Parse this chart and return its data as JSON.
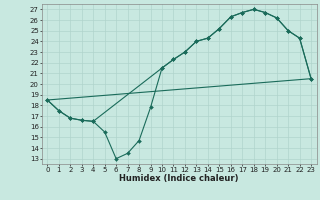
{
  "title": "",
  "xlabel": "Humidex (Indice chaleur)",
  "bg_color": "#c8e8e0",
  "grid_color": "#b0d4cc",
  "line_color": "#1a6b5a",
  "xlim": [
    -0.5,
    23.5
  ],
  "ylim": [
    12.5,
    27.5
  ],
  "yticks": [
    13,
    14,
    15,
    16,
    17,
    18,
    19,
    20,
    21,
    22,
    23,
    24,
    25,
    26,
    27
  ],
  "xticks": [
    0,
    1,
    2,
    3,
    4,
    5,
    6,
    7,
    8,
    9,
    10,
    11,
    12,
    13,
    14,
    15,
    16,
    17,
    18,
    19,
    20,
    21,
    22,
    23
  ],
  "line1_x": [
    0,
    1,
    2,
    3,
    4,
    10,
    11,
    12,
    13,
    14,
    15,
    16,
    17,
    18,
    19,
    20,
    21,
    22,
    23
  ],
  "line1_y": [
    18.5,
    17.5,
    16.8,
    16.6,
    16.5,
    21.5,
    22.3,
    23.0,
    24.0,
    24.3,
    25.2,
    26.3,
    26.7,
    27.0,
    26.7,
    26.2,
    25.0,
    24.3,
    20.5
  ],
  "line2_x": [
    0,
    1,
    2,
    3,
    4,
    5,
    6,
    7,
    8,
    9,
    10,
    11,
    12,
    13,
    14,
    15,
    16,
    17,
    18,
    19,
    20,
    21,
    22,
    23
  ],
  "line2_y": [
    18.5,
    17.5,
    16.8,
    16.6,
    16.5,
    15.5,
    13.0,
    13.5,
    14.7,
    17.8,
    21.5,
    22.3,
    23.0,
    24.0,
    24.3,
    25.2,
    26.3,
    26.7,
    27.0,
    26.7,
    26.2,
    25.0,
    24.3,
    20.5
  ],
  "line3_x": [
    0,
    23
  ],
  "line3_y": [
    18.5,
    20.5
  ],
  "tick_fontsize": 5.0,
  "xlabel_fontsize": 6.0
}
